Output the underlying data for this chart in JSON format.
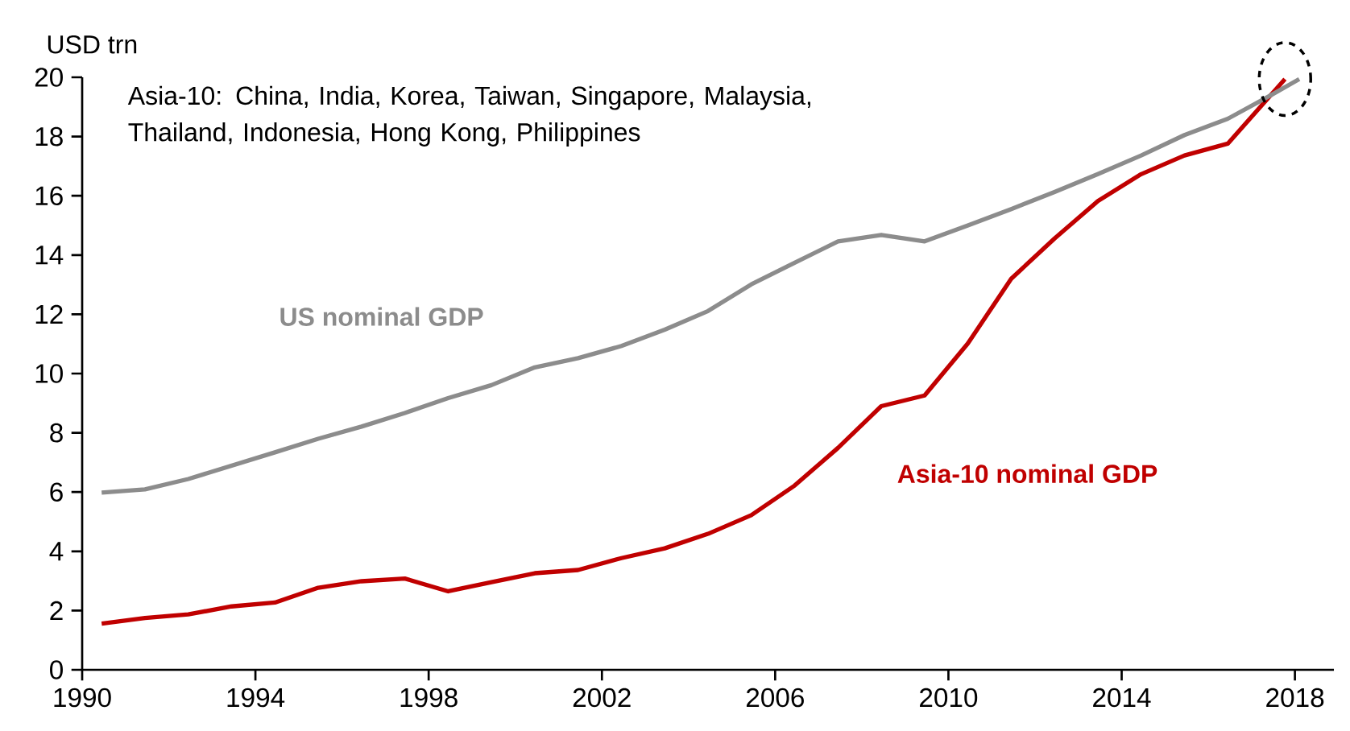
{
  "chart_data": {
    "type": "line",
    "ylabel": "USD trn",
    "annotations": [
      "Asia-10: China, India, Korea, Taiwan, Singapore, Malaysia, Thailand, Indonesia, Hong Kong, Philippines"
    ],
    "series": [
      {
        "name": "Asia-10 nominal GDP",
        "color": "#c00000",
        "x": [
          1990.45,
          1991.45,
          1992.45,
          1993.45,
          1994.45,
          1995.45,
          1996.45,
          1997.45,
          1998.45,
          1999.45,
          2000.45,
          2001.45,
          2002.45,
          2003.45,
          2004.45,
          2005.45,
          2006.45,
          2007.45,
          2008.45,
          2009.45,
          2010.45,
          2011.45,
          2012.45,
          2013.45,
          2014.45,
          2015.45,
          2016.45,
          2017.77
        ],
        "values": [
          1.56,
          1.75,
          1.87,
          2.14,
          2.27,
          2.77,
          2.99,
          3.08,
          2.65,
          2.96,
          3.26,
          3.37,
          3.77,
          4.1,
          4.59,
          5.22,
          6.22,
          7.49,
          8.9,
          9.26,
          11.02,
          13.2,
          14.56,
          15.82,
          16.73,
          17.36,
          17.76,
          19.94
        ]
      },
      {
        "name": "US nominal GDP",
        "color": "#8c8c8c",
        "x": [
          1990.45,
          1991.45,
          1992.45,
          1993.45,
          1994.45,
          1995.45,
          1996.45,
          1997.45,
          1998.45,
          1999.45,
          2000.45,
          2001.45,
          2002.45,
          2003.45,
          2004.45,
          2005.45,
          2006.45,
          2007.45,
          2008.45,
          2009.45,
          2010.45,
          2011.45,
          2012.45,
          2013.45,
          2014.45,
          2015.45,
          2016.45,
          2017.45,
          2018.1
        ],
        "values": [
          5.98,
          6.09,
          6.44,
          6.89,
          7.34,
          7.8,
          8.21,
          8.67,
          9.17,
          9.61,
          10.21,
          10.52,
          10.93,
          11.48,
          12.11,
          13.01,
          13.74,
          14.46,
          14.68,
          14.46,
          15.0,
          15.55,
          16.13,
          16.73,
          17.36,
          18.05,
          18.6,
          19.4,
          19.94
        ]
      }
    ],
    "xlim": [
      1990,
      2018.9
    ],
    "xticks": [
      1990,
      1994,
      1998,
      2002,
      2006,
      2010,
      2014,
      2018
    ],
    "ylim": [
      0,
      20
    ],
    "yticks": [
      0,
      2,
      4,
      6,
      8,
      10,
      12,
      14,
      16,
      18,
      20
    ],
    "grid": false,
    "legend": false,
    "marker": "none",
    "line_style": "solid"
  }
}
